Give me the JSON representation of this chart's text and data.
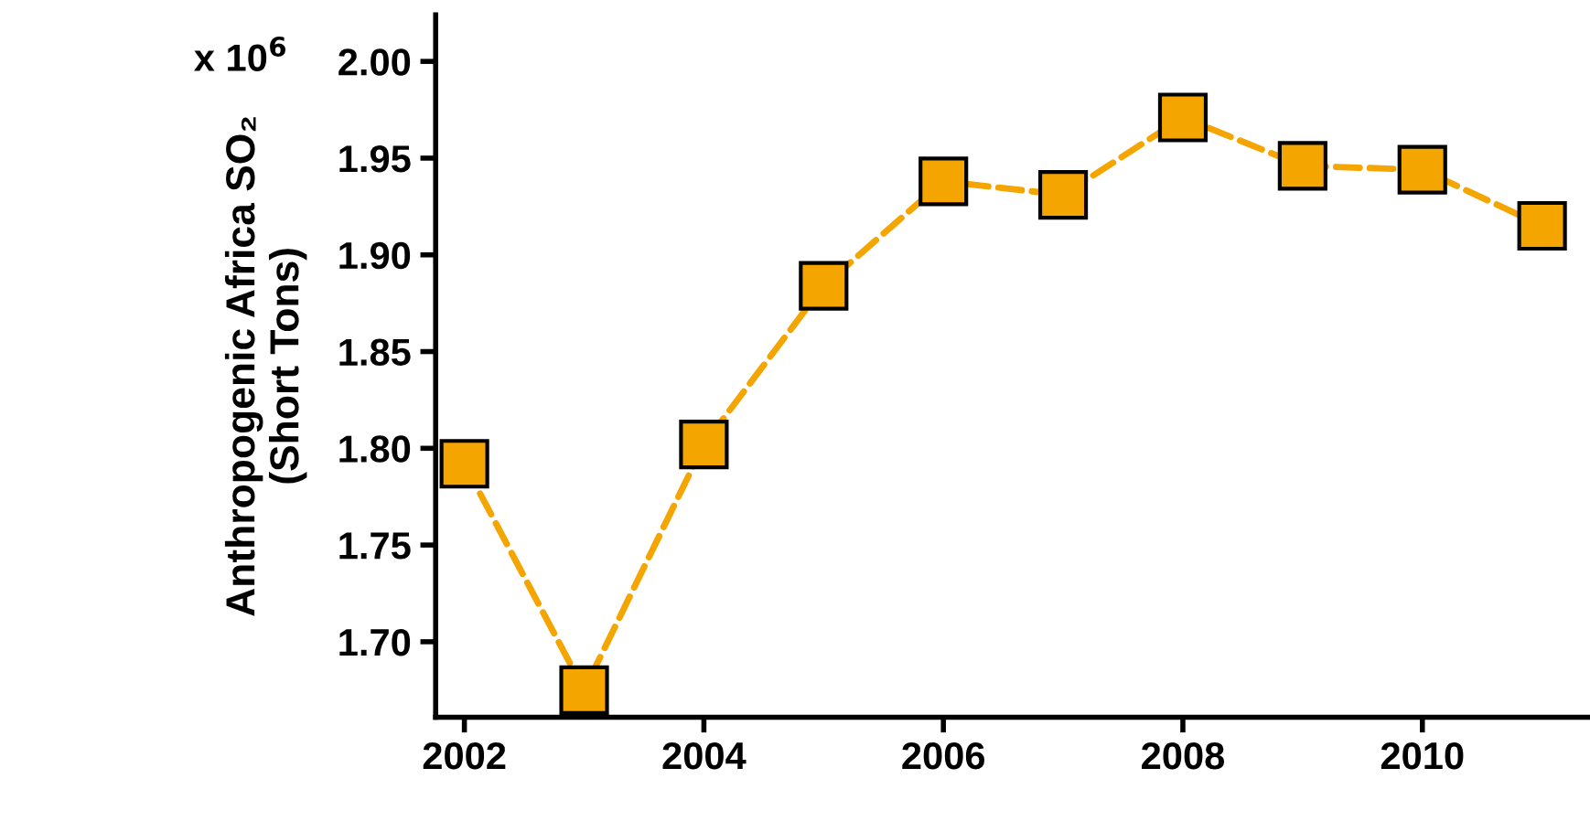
{
  "chart_data": {
    "type": "line",
    "ylabel": "Anthropogenic Africa SO₂\n(Short Tons)",
    "x": [
      2002,
      2003,
      2004,
      2005,
      2006,
      2007,
      2008,
      2009,
      2010,
      2011
    ],
    "series": [
      {
        "color": "#f5a500",
        "values": [
          1.792,
          1.675,
          1.802,
          1.884,
          1.938,
          1.931,
          1.971,
          1.946,
          1.944,
          1.915
        ]
      }
    ],
    "marker": "square",
    "line_style": "dashed",
    "grid": false,
    "annotations": [
      "x 10$^{6}$"
    ],
    "xlim": [
      2001.76,
      2011.4
    ],
    "xticks": [
      2002,
      2004,
      2006,
      2008,
      2010
    ],
    "ylim": [
      1.661,
      2.024
    ],
    "yticks": [
      {
        "value": 1.7,
        "label": "1.70"
      },
      1.75,
      {
        "value": 1.8,
        "label": "1.80"
      },
      1.85,
      {
        "value": 1.9,
        "label": "1.90"
      },
      1.95,
      {
        "value": 2.0,
        "label": "2.00"
      }
    ]
  }
}
